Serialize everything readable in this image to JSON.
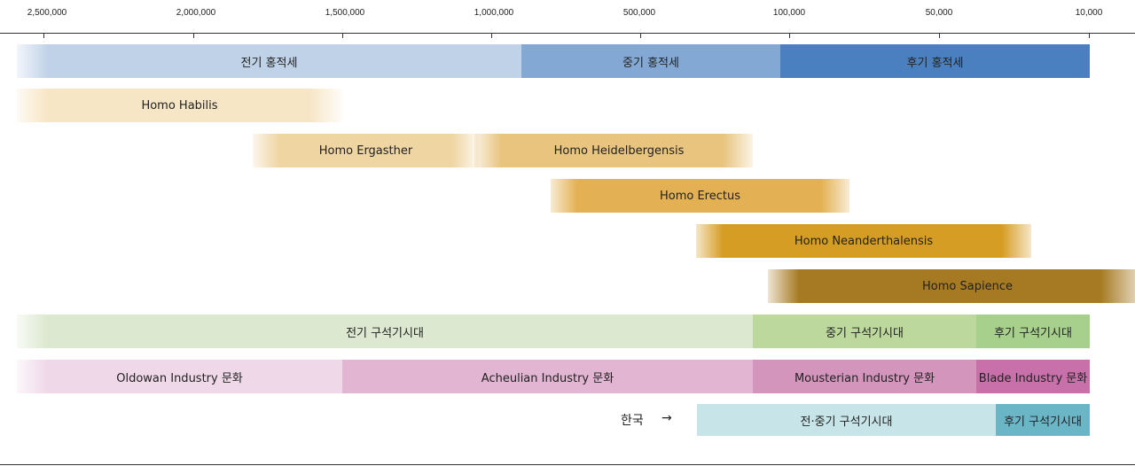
{
  "axis": {
    "ticks": [
      "2,500,000",
      "2,000,000",
      "1,500,000",
      "1,000,000",
      "500,000",
      "100,000",
      "50,000",
      "10,000"
    ]
  },
  "epochs": {
    "early": "전기 홍적세",
    "middle": "중기 홍적세",
    "late": "후기 홍적세"
  },
  "species": {
    "habilis": "Homo Habilis",
    "ergaster": "Homo Ergasther",
    "heidelbergensis": "Homo Heidelbergensis",
    "erectus": "Homo Erectus",
    "neanderthalensis": "Homo Neanderthalensis",
    "sapience": "Homo Sapience"
  },
  "paleolithic": {
    "lower": "전기 구석기시대",
    "middle": "중기 구석기시대",
    "upper": "후기 구석기시대"
  },
  "industries": {
    "oldowan": "Oldowan Industry 문화",
    "acheulian": "Acheulian Industry 문화",
    "mousterian": "Mousterian Industry 문화",
    "blade": "Blade Industry 문화"
  },
  "korea": {
    "label": "한국",
    "arrow": "→",
    "early_middle": "전·중기 구석기시대",
    "late": "후기 구석기시대"
  },
  "colors": {
    "epoch_early": "#c0d2e8",
    "epoch_middle": "#83a8d4",
    "epoch_late": "#4a7fc0",
    "habilis": "#f7e6c6",
    "ergaster": "#efd5a2",
    "heidelbergensis": "#e8c47e",
    "erectus": "#e3b153",
    "neanderthalensis": "#d69d24",
    "sapience": "#a67a22",
    "paleo_lower": "#dce8d0",
    "paleo_middle": "#bcd89c",
    "paleo_upper": "#a6d08c",
    "oldowan": "#efd8e8",
    "acheulian": "#e2b5d2",
    "mousterian": "#d495bc",
    "blade": "#c870aa",
    "korea_early": "#c7e5e8",
    "korea_late": "#6ab6c6"
  }
}
